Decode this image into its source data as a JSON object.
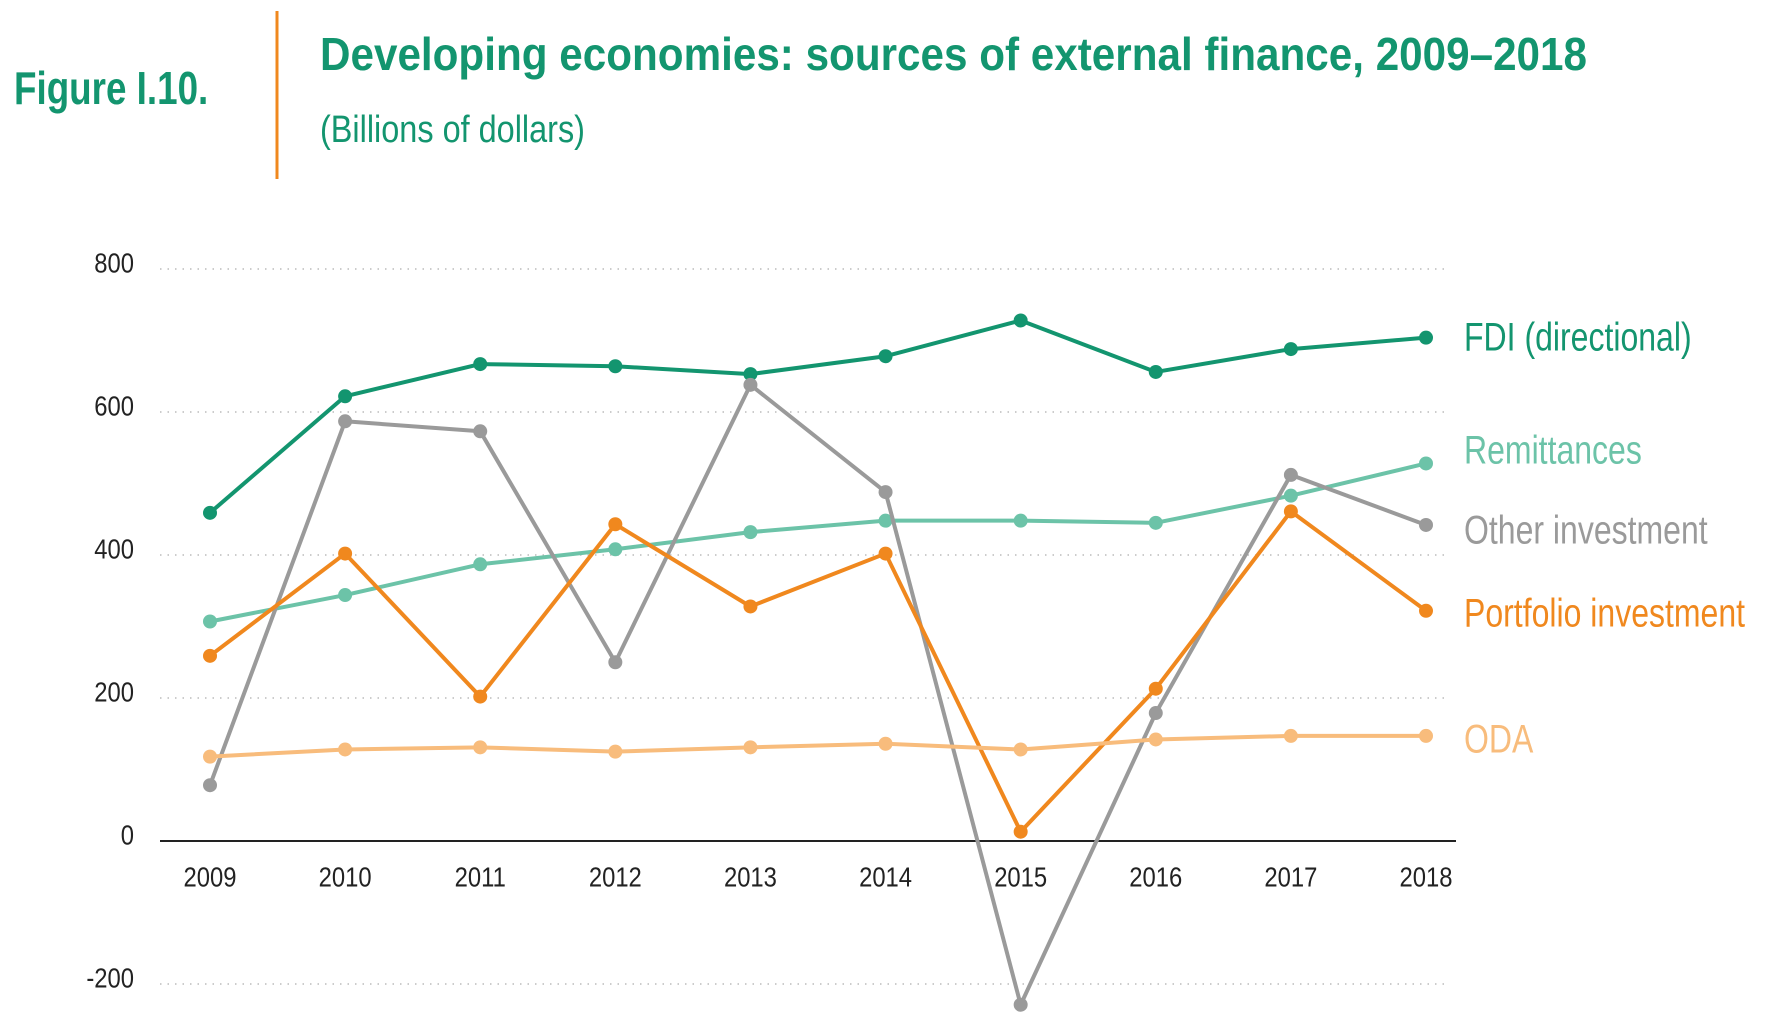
{
  "chart_data": {
    "type": "line",
    "figure_label": "Figure I.10.",
    "title": "Developing economies: sources of external finance, 2009–2018",
    "subtitle": "(Billions of dollars)",
    "categories": [
      "2009",
      "2010",
      "2011",
      "2012",
      "2013",
      "2014",
      "2015",
      "2016",
      "2017",
      "2018"
    ],
    "series": [
      {
        "name": "FDI (directional)",
        "color": "#13956f",
        "values": [
          459,
          622,
          667,
          664,
          653,
          678,
          728,
          656,
          688,
          704
        ]
      },
      {
        "name": "Remittances",
        "color": "#6cc3a8",
        "values": [
          307,
          344,
          387,
          408,
          432,
          448,
          448,
          445,
          483,
          528
        ]
      },
      {
        "name": "Other investment",
        "color": "#9a9a9a",
        "values": [
          78,
          587,
          573,
          250,
          638,
          488,
          -229,
          179,
          512,
          442
        ]
      },
      {
        "name": "Portfolio investment",
        "color": "#f0881e",
        "values": [
          259,
          402,
          202,
          443,
          328,
          402,
          13,
          213,
          461,
          322
        ]
      },
      {
        "name": "ODA",
        "color": "#f8bc7c",
        "values": [
          118,
          128,
          131,
          125,
          131,
          136,
          128,
          142,
          147,
          147
        ]
      }
    ],
    "ylim": [
      -200,
      800
    ],
    "yticks": [
      -200,
      0,
      200,
      400,
      600,
      800
    ],
    "grid": true
  }
}
